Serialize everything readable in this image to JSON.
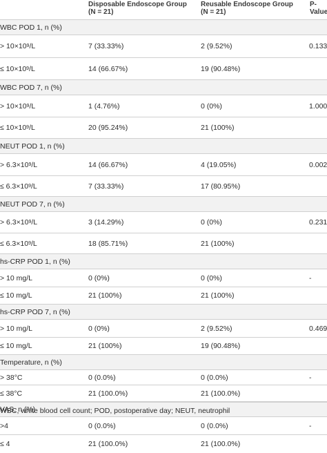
{
  "header": {
    "col2_line1": "Disposable Endoscope Group",
    "col2_line2": "(N = 21)",
    "col3_line1": "Reusable Endoscope Group",
    "col3_line2": "(N = 21)",
    "col4_line1": "P-",
    "col4_line2": "Value"
  },
  "rows": [
    {
      "type": "section",
      "label": "WBC POD 1, n (%)",
      "p": ""
    },
    {
      "type": "data",
      "label_pre": "> 10×10",
      "sup": "9",
      "label_post": "/L",
      "g1": "7 (33.33%)",
      "g2": "2 (9.52%)",
      "p": "0.133"
    },
    {
      "type": "data",
      "label_pre": "≤ 10×10",
      "sup": "9",
      "label_post": "/L",
      "g1": "14 (66.67%)",
      "g2": "19 (90.48%)",
      "p": ""
    },
    {
      "type": "section",
      "label": "WBC POD 7, n (%)",
      "p": ""
    },
    {
      "type": "data",
      "label_pre": "> 10×10",
      "sup": "9",
      "label_post": "/L",
      "g1": "1 (4.76%)",
      "g2": "0 (0%)",
      "p": "1.000"
    },
    {
      "type": "data",
      "label_pre": "≤ 10×10",
      "sup": "9",
      "label_post": "/L",
      "g1": "20 (95.24%)",
      "g2": "21 (100%)",
      "p": ""
    },
    {
      "type": "section",
      "label": "NEUT POD 1, n (%)",
      "p": ""
    },
    {
      "type": "data",
      "label_pre": "> 6.3×10",
      "sup": "9",
      "label_post": "/L",
      "g1": "14 (66.67%)",
      "g2": "4 (19.05%)",
      "p": "0.002"
    },
    {
      "type": "data",
      "label_pre": "≤ 6.3×10",
      "sup": "9",
      "label_post": "/L",
      "g1": "7 (33.33%)",
      "g2": "17 (80.95%)",
      "p": ""
    },
    {
      "type": "section",
      "label": "NEUT POD 7, n (%)",
      "p": ""
    },
    {
      "type": "data",
      "label_pre": "> 6.3×10",
      "sup": "9",
      "label_post": "/L",
      "g1": "3 (14.29%)",
      "g2": "0 (0%)",
      "p": "0.231"
    },
    {
      "type": "data",
      "label_pre": "≤ 6.3×10",
      "sup": "9",
      "label_post": "/L",
      "g1": "18 (85.71%)",
      "g2": "21 (100%)",
      "p": ""
    },
    {
      "type": "section",
      "label": "hs-CRP POD 1, n (%)",
      "p": ""
    },
    {
      "type": "data",
      "label_pre": "> 10 mg/L",
      "sup": "",
      "label_post": "",
      "g1": "0 (0%)",
      "g2": "0 (0%)",
      "p": "-"
    },
    {
      "type": "data",
      "label_pre": "≤ 10 mg/L",
      "sup": "",
      "label_post": "",
      "g1": "21 (100%)",
      "g2": "21 (100%)",
      "p": ""
    },
    {
      "type": "section",
      "label": "hs-CRP POD 7, n (%)",
      "p": ""
    },
    {
      "type": "data",
      "label_pre": "> 10 mg/L",
      "sup": "",
      "label_post": "",
      "g1": "0 (0%)",
      "g2": "2 (9.52%)",
      "p": "0.469"
    },
    {
      "type": "data",
      "label_pre": "≤ 10 mg/L",
      "sup": "",
      "label_post": "",
      "g1": "21 (100%)",
      "g2": "19 (90.48%)",
      "p": ""
    },
    {
      "type": "section",
      "label": "Temperature, n (%)",
      "p": ""
    },
    {
      "type": "data",
      "label_pre": "> 38°C",
      "sup": "",
      "label_post": "",
      "g1": "0 (0.0%)",
      "g2": "0 (0.0%)",
      "p": "-"
    },
    {
      "type": "data",
      "label_pre": "≤ 38°C",
      "sup": "",
      "label_post": "",
      "g1": "21 (100.0%)",
      "g2": "21 (100.0%)",
      "p": ""
    },
    {
      "type": "section",
      "label": "VAS, n (%)",
      "p": ""
    },
    {
      "type": "data",
      "label_pre": ">4",
      "sup": "",
      "label_post": "",
      "g1": "0 (0.0%)",
      "g2": "0 (0.0%)",
      "p": "-"
    },
    {
      "type": "data",
      "label_pre": "≤ 4",
      "sup": "",
      "label_post": "",
      "g1": "21 (100.0%)",
      "g2": "21 (100.0%)",
      "p": ""
    }
  ],
  "footer": "WBC, white blood cell count; POD, postoperative day; NEUT, neutrophil"
}
